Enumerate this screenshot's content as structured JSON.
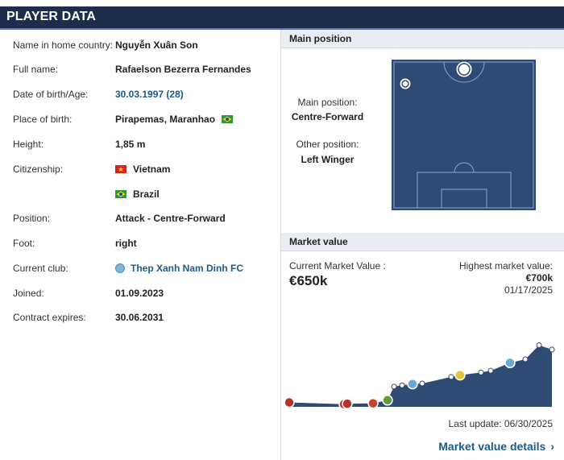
{
  "header": {
    "title": "PLAYER DATA"
  },
  "player": {
    "rows": [
      {
        "label": "Name in home country:",
        "value": "Nguyễn Xuân Son"
      },
      {
        "label": "Full name:",
        "value": "Rafaelson Bezerra Fernandes"
      },
      {
        "label": "Date of birth/Age:",
        "value": "30.03.1997 (28)"
      },
      {
        "label": "Place of birth:",
        "value": "Pirapemas, Maranhao"
      },
      {
        "label": "Height:",
        "value": "1,85 m"
      },
      {
        "label": "Citizenship:",
        "value": "Vietnam"
      },
      {
        "label": "",
        "value": "Brazil"
      },
      {
        "label": "Position:",
        "value": "Attack - Centre-Forward"
      },
      {
        "label": "Foot:",
        "value": "right"
      },
      {
        "label": "Current club:",
        "value": "Thep Xanh Nam Dinh FC"
      },
      {
        "label": "Joined:",
        "value": "01.09.2023"
      },
      {
        "label": "Contract expires:",
        "value": "30.06.2031"
      }
    ]
  },
  "main_position": {
    "heading": "Main position",
    "main_label": "Main position:",
    "main_value": "Centre-Forward",
    "other_label": "Other position:",
    "other_value": "Left Winger"
  },
  "market_value": {
    "heading": "Market value",
    "current_label": "Current Market Value :",
    "current_value": "€650k",
    "highest_label": "Highest market value:",
    "highest_value": "€700k",
    "highest_date": "01/17/2025",
    "last_update": "Last update: 06/30/2025",
    "details_link": "Market value details",
    "details_chevron": "›"
  },
  "colors": {
    "header_bg": "#1d2d4b",
    "pitch_bg": "#2f4a73",
    "link": "#1a5b8c",
    "chart_fill": "#2f4a73"
  },
  "icons": {
    "vietnam_flag": "vietnam-flag-icon",
    "brazil_flag": "brazil-flag-icon",
    "club_badge": "club-badge-icon"
  },
  "chart_data": {
    "type": "area",
    "title": "",
    "xlabel": "",
    "ylabel": "",
    "series": [
      {
        "values": [
          50,
          30,
          35,
          40,
          75,
          230,
          245,
          260,
          265,
          340,
          360,
          390,
          410,
          500,
          540,
          700,
          650
        ]
      }
    ],
    "ylim": [
      0,
      750
    ],
    "grid": false,
    "markers": [
      "club-logo",
      "club-logo",
      "club-logo",
      "club-logo",
      "club-logo",
      "dot",
      "dot",
      "club-logo",
      "dot",
      "dot",
      "club-logo",
      "dot",
      "dot",
      "club-logo",
      "dot",
      "dot",
      "dot"
    ]
  }
}
